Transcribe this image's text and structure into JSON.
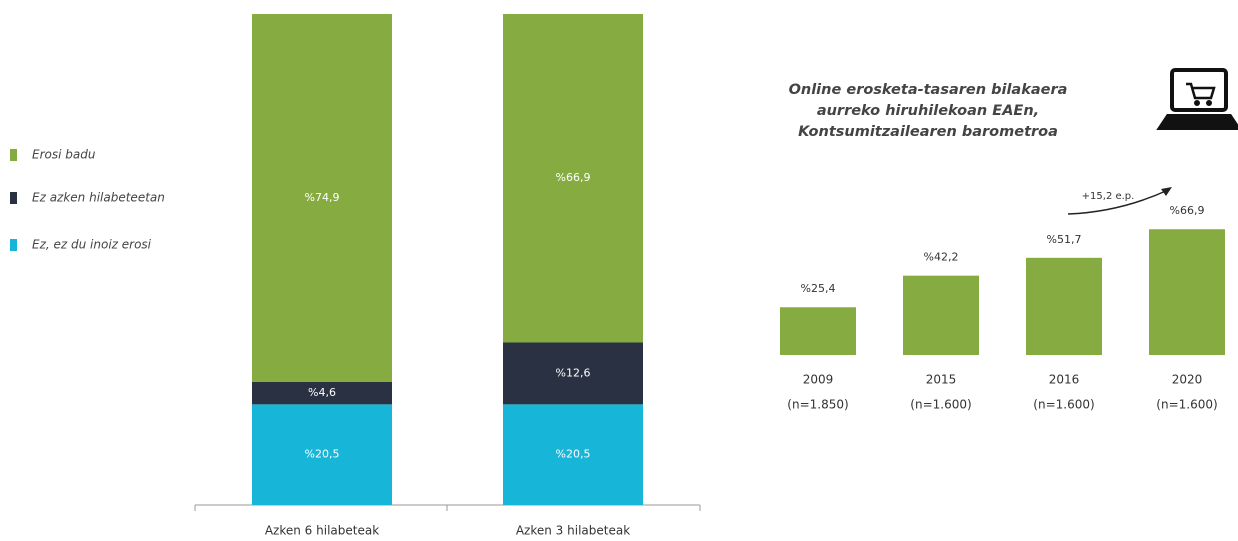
{
  "chart_data": [
    {
      "type": "bar",
      "stacked": true,
      "categories": [
        "Azken 6 hilabeteak",
        "Azken 3 hilabeteak"
      ],
      "ylim": [
        0,
        100
      ],
      "series": [
        {
          "name": "Erosi badu",
          "color": "#86ac41",
          "values": [
            74.9,
            66.9
          ],
          "value_labels": [
            "%74,9",
            "%66,9"
          ]
        },
        {
          "name": "Ez azken hilabeteetan",
          "color": "#2a3142",
          "values": [
            4.6,
            12.6
          ],
          "value_labels": [
            "%4,6",
            "%12,6"
          ]
        },
        {
          "name": "Ez, ez du inoiz erosi",
          "color": "#17b6d9",
          "values": [
            20.5,
            20.5
          ],
          "value_labels": [
            "%20,5",
            "%20,5"
          ]
        }
      ]
    },
    {
      "type": "bar",
      "title": [
        "Online erosketa-tasaren bilakaera",
        "aurreko hiruhilekoan EAEn,",
        "Kontsumitzailearen barometroa"
      ],
      "categories": [
        "2009",
        "2015",
        "2016",
        "2020"
      ],
      "n_labels": [
        "(n=1.850)",
        "(n=1.600)",
        "(n=1.600)",
        "(n=1.600)"
      ],
      "values": [
        25.4,
        42.2,
        51.7,
        66.9
      ],
      "value_labels": [
        "%25,4",
        "%42,2",
        "%51,7",
        "%66,9"
      ],
      "color": "#86ac41",
      "ylim": [
        0,
        100
      ],
      "annotation": "+15,2 e.p."
    }
  ]
}
